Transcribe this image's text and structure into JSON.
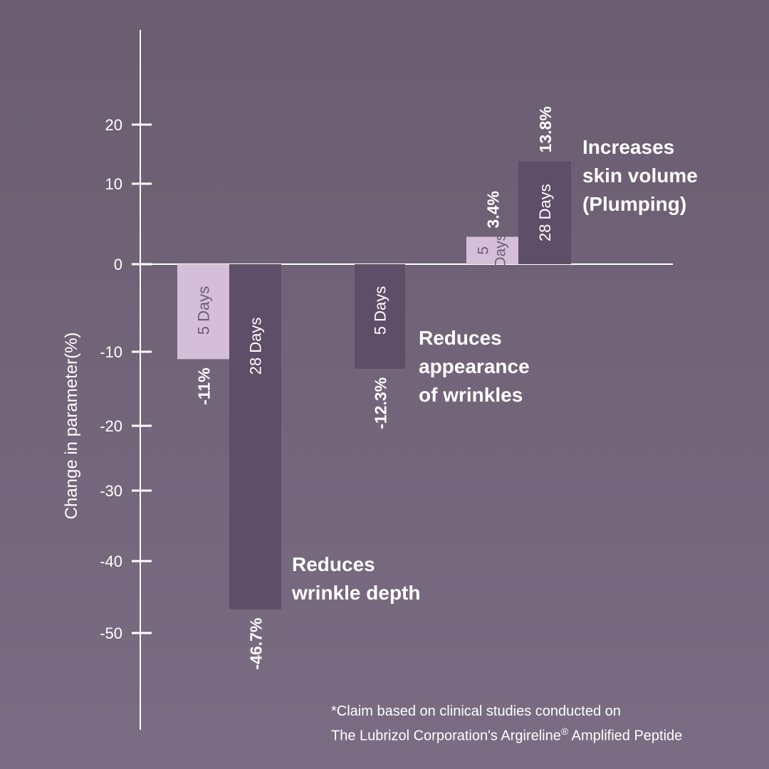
{
  "chart_data": {
    "type": "bar",
    "ylabel": "Change in parameter(%)",
    "yticks": [
      20,
      10,
      0,
      -10,
      -20,
      -30,
      -40,
      -50
    ],
    "ylim": [
      -50,
      20
    ],
    "bars": [
      {
        "group": "Reduces wrinkle depth",
        "label": "5 Days",
        "value": -11,
        "value_label": "-11%",
        "color": "#d5bfd8",
        "text_color": "#6a5d70"
      },
      {
        "group": "Reduces wrinkle depth",
        "label": "28 Days",
        "value": -46.7,
        "value_label": "-46.7%",
        "color": "#5e4e68",
        "text_color": "#ffffff"
      },
      {
        "group": "Reduces appearance of wrinkles",
        "label": "5 Days",
        "value": -12.3,
        "value_label": "-12.3%",
        "color": "#5e4e68",
        "text_color": "#ffffff"
      },
      {
        "group": "Increases skin volume (Plumping)",
        "label": "5 Days",
        "value": 3.4,
        "value_label": "3.4%",
        "color": "#d5bfd8",
        "text_color": "#6a5d70"
      },
      {
        "group": "Increases skin volume (Plumping)",
        "label": "28 Days",
        "value": 13.8,
        "value_label": "13.8%",
        "color": "#5e4e68",
        "text_color": "#ffffff"
      }
    ],
    "annotations": [
      {
        "lines": [
          "Reduces",
          "wrinkle depth"
        ]
      },
      {
        "lines": [
          "Reduces",
          "appearance",
          "of wrinkles"
        ]
      },
      {
        "lines": [
          "Increases",
          "skin volume",
          "(Plumping)"
        ]
      }
    ]
  },
  "footnote": {
    "line1": "*Claim based on clinical studies conducted on",
    "line2_before": "The Lubrizol Corporation's Argireline",
    "registered": "®",
    "line2_after": "Amplified Peptide"
  }
}
